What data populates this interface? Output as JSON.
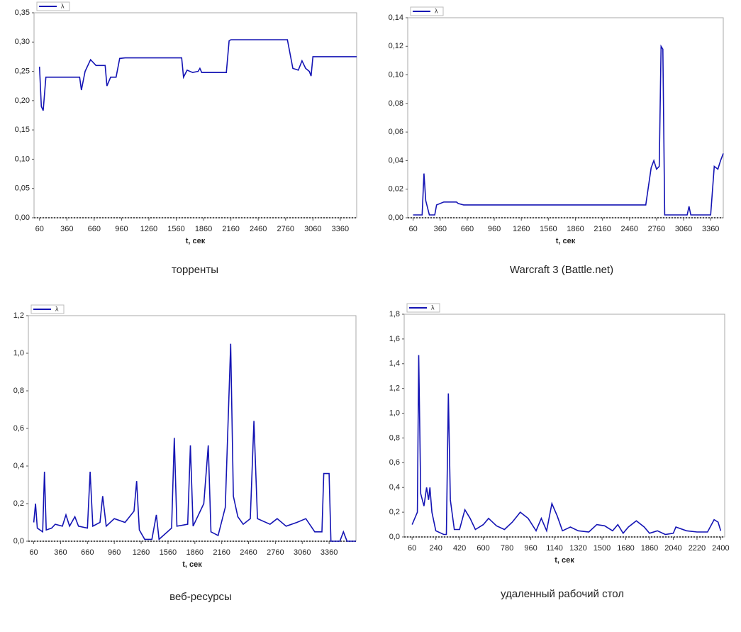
{
  "chart_data": [
    {
      "type": "line",
      "caption": "торренты",
      "x_label": "t, сек",
      "x": [
        60,
        80,
        100,
        130,
        500,
        520,
        560,
        620,
        680,
        780,
        800,
        840,
        900,
        940,
        1000,
        1620,
        1640,
        1680,
        1740,
        1800,
        1820,
        1840,
        2110,
        2140,
        2160,
        2780,
        2840,
        2900,
        2940,
        2980,
        3020,
        3040,
        3060,
        3540
      ],
      "series": [
        {
          "name": "λ",
          "color": "#1414b4",
          "values": [
            0.258,
            0.19,
            0.183,
            0.24,
            0.24,
            0.218,
            0.25,
            0.27,
            0.26,
            0.26,
            0.225,
            0.24,
            0.24,
            0.272,
            0.273,
            0.273,
            0.24,
            0.252,
            0.248,
            0.25,
            0.255,
            0.248,
            0.248,
            0.302,
            0.304,
            0.304,
            0.255,
            0.252,
            0.268,
            0.255,
            0.25,
            0.242,
            0.275,
            0.275
          ]
        }
      ],
      "xlim": [
        0,
        3540
      ],
      "ylim": [
        0,
        0.35
      ],
      "xticks": [
        60,
        360,
        660,
        960,
        1260,
        1560,
        1860,
        2160,
        2460,
        2760,
        3060,
        3360
      ],
      "yticks": [
        {
          "value": 0,
          "label": "0,00"
        },
        {
          "value": 0.05,
          "label": "0,05"
        },
        {
          "value": 0.1,
          "label": "0,10"
        },
        {
          "value": 0.15,
          "label": "0,15"
        },
        {
          "value": 0.2,
          "label": "0,20"
        },
        {
          "value": 0.25,
          "label": "0,25"
        },
        {
          "value": 0.3,
          "label": "0,30"
        },
        {
          "value": 0.35,
          "label": "0,35"
        }
      ]
    },
    {
      "type": "line",
      "caption": "Warcraft 3 (Battle.net)",
      "x_label": "t, сек",
      "x": [
        60,
        160,
        180,
        200,
        240,
        300,
        320,
        400,
        540,
        560,
        620,
        1800,
        2000,
        2640,
        2700,
        2730,
        2760,
        2790,
        2810,
        2830,
        2850,
        3100,
        3120,
        3140,
        3360,
        3400,
        3440,
        3470,
        3500
      ],
      "series": [
        {
          "name": "λ",
          "color": "#1414b4",
          "values": [
            0.002,
            0.002,
            0.031,
            0.012,
            0.002,
            0.002,
            0.009,
            0.011,
            0.011,
            0.01,
            0.009,
            0.009,
            0.009,
            0.009,
            0.035,
            0.04,
            0.034,
            0.036,
            0.12,
            0.118,
            0.002,
            0.002,
            0.008,
            0.002,
            0.002,
            0.036,
            0.034,
            0.04,
            0.045
          ]
        }
      ],
      "xlim": [
        0,
        3500
      ],
      "ylim": [
        0,
        0.14
      ],
      "xticks": [
        60,
        360,
        660,
        960,
        1260,
        1560,
        1860,
        2160,
        2460,
        2760,
        3060,
        3360
      ],
      "yticks": [
        {
          "value": 0,
          "label": "0,00"
        },
        {
          "value": 0.02,
          "label": "0,02"
        },
        {
          "value": 0.04,
          "label": "0,04"
        },
        {
          "value": 0.06,
          "label": "0,06"
        },
        {
          "value": 0.08,
          "label": "0,08"
        },
        {
          "value": 0.1,
          "label": "0,10"
        },
        {
          "value": 0.12,
          "label": "0,12"
        },
        {
          "value": 0.14,
          "label": "0,14"
        }
      ]
    },
    {
      "type": "line",
      "caption": "веб-ресурсы",
      "x_label": "t, сек",
      "x": [
        60,
        80,
        100,
        160,
        180,
        200,
        260,
        300,
        380,
        420,
        460,
        520,
        560,
        660,
        690,
        720,
        800,
        830,
        870,
        960,
        1080,
        1180,
        1210,
        1240,
        1300,
        1380,
        1430,
        1460,
        1600,
        1630,
        1660,
        1780,
        1810,
        1840,
        1960,
        2010,
        2040,
        2120,
        2200,
        2260,
        2290,
        2340,
        2400,
        2480,
        2520,
        2560,
        2700,
        2780,
        2880,
        3000,
        3100,
        3200,
        3280,
        3300,
        3360,
        3380,
        3480,
        3520,
        3560,
        3660
      ],
      "series": [
        {
          "name": "λ",
          "color": "#1414b4",
          "values": [
            0.1,
            0.2,
            0.07,
            0.05,
            0.37,
            0.06,
            0.07,
            0.09,
            0.08,
            0.14,
            0.08,
            0.13,
            0.08,
            0.07,
            0.37,
            0.08,
            0.1,
            0.24,
            0.08,
            0.12,
            0.1,
            0.16,
            0.32,
            0.06,
            0.01,
            0.01,
            0.14,
            0.01,
            0.07,
            0.55,
            0.08,
            0.09,
            0.51,
            0.08,
            0.2,
            0.51,
            0.05,
            0.03,
            0.18,
            1.05,
            0.24,
            0.13,
            0.09,
            0.12,
            0.64,
            0.12,
            0.09,
            0.12,
            0.08,
            0.1,
            0.12,
            0.05,
            0.05,
            0.36,
            0.36,
            0,
            0,
            0.05,
            0,
            0
          ]
        }
      ],
      "xlim": [
        0,
        3660
      ],
      "ylim": [
        0,
        1.2
      ],
      "xticks": [
        60,
        360,
        660,
        960,
        1260,
        1560,
        1860,
        2160,
        2460,
        2760,
        3060,
        3360
      ],
      "yticks": [
        {
          "value": 0,
          "label": "0,0"
        },
        {
          "value": 0.2,
          "label": "0,2"
        },
        {
          "value": 0.4,
          "label": "0,4"
        },
        {
          "value": 0.6,
          "label": "0,6"
        },
        {
          "value": 0.8,
          "label": "0,8"
        },
        {
          "value": 1,
          "label": "1,0"
        },
        {
          "value": 1.2,
          "label": "1,2"
        }
      ]
    },
    {
      "type": "line",
      "caption": "удаленный рабочий стол",
      "x_label": "t, сек",
      "x": [
        60,
        80,
        100,
        110,
        125,
        150,
        170,
        185,
        195,
        210,
        240,
        300,
        320,
        335,
        350,
        380,
        420,
        460,
        500,
        540,
        600,
        640,
        700,
        760,
        820,
        880,
        940,
        1000,
        1040,
        1080,
        1120,
        1160,
        1200,
        1260,
        1320,
        1400,
        1460,
        1520,
        1580,
        1620,
        1660,
        1700,
        1760,
        1820,
        1860,
        1920,
        1980,
        2040,
        2060,
        2140,
        2220,
        2300,
        2350,
        2380,
        2400
      ],
      "series": [
        {
          "name": "λ",
          "color": "#1414b4",
          "values": [
            0.1,
            0.15,
            0.2,
            1.47,
            0.35,
            0.25,
            0.4,
            0.3,
            0.4,
            0.2,
            0.05,
            0.02,
            0.02,
            1.16,
            0.3,
            0.06,
            0.06,
            0.22,
            0.15,
            0.06,
            0.1,
            0.15,
            0.09,
            0.06,
            0.12,
            0.2,
            0.15,
            0.05,
            0.15,
            0.05,
            0.27,
            0.17,
            0.05,
            0.08,
            0.05,
            0.04,
            0.1,
            0.09,
            0.05,
            0.1,
            0.03,
            0.08,
            0.13,
            0.08,
            0.03,
            0.05,
            0.02,
            0.03,
            0.08,
            0.05,
            0.04,
            0.04,
            0.14,
            0.12,
            0.05
          ]
        }
      ],
      "xlim": [
        0,
        2430
      ],
      "ylim": [
        0,
        1.8
      ],
      "xticks": [
        60,
        240,
        420,
        600,
        780,
        960,
        1140,
        1320,
        1500,
        1680,
        1860,
        2040,
        2220,
        2400
      ],
      "yticks": [
        {
          "value": 0,
          "label": "0,0"
        },
        {
          "value": 0.2,
          "label": "0,2"
        },
        {
          "value": 0.4,
          "label": "0,4"
        },
        {
          "value": 0.6,
          "label": "0,6"
        },
        {
          "value": 0.8,
          "label": "0,8"
        },
        {
          "value": 1,
          "label": "1,0"
        },
        {
          "value": 1.2,
          "label": "1,2"
        },
        {
          "value": 1.4,
          "label": "1,4"
        },
        {
          "value": 1.6,
          "label": "1,6"
        },
        {
          "value": 1.8,
          "label": "1,8"
        }
      ]
    }
  ]
}
